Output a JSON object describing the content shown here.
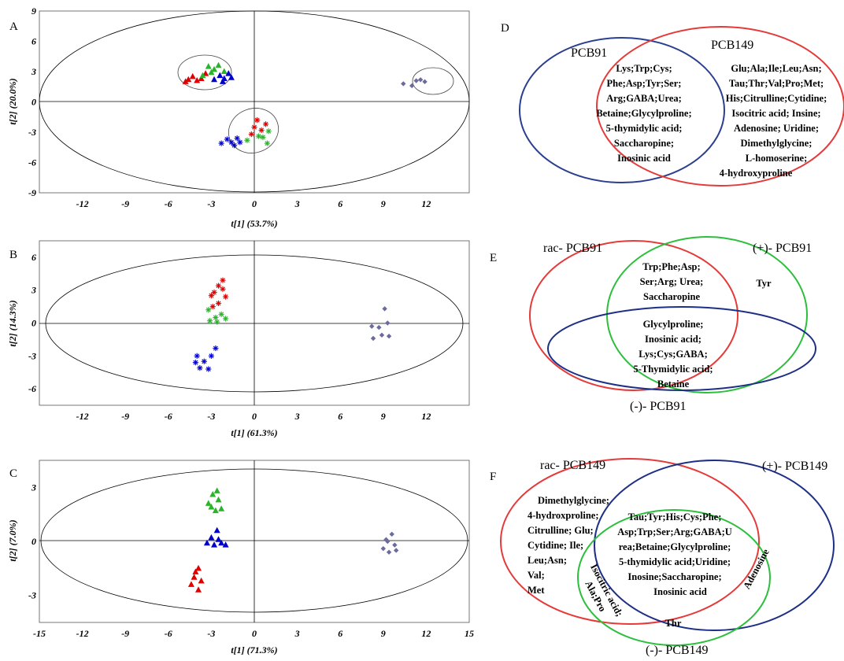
{
  "chart_data": [
    {
      "type": "scatter",
      "panel_label": "A",
      "xlabel": "t[1] (53.7%)",
      "ylabel": "t[2] (20.0%)",
      "xlim": [
        -15,
        15
      ],
      "ylim": [
        -9,
        9
      ],
      "xticks": [
        -12,
        -9,
        -6,
        -3,
        0,
        3,
        6,
        9,
        12
      ],
      "yticks": [
        -9,
        -6,
        -3,
        0,
        3,
        6,
        9
      ],
      "series": [
        {
          "marker": "triangle",
          "color": "#e00000",
          "points": [
            [
              -4.6,
              2.2
            ],
            [
              -4.3,
              2.5
            ],
            [
              -4.0,
              2.1
            ],
            [
              -3.7,
              2.3
            ],
            [
              -3.4,
              2.8
            ],
            [
              -4.8,
              2.0
            ]
          ]
        },
        {
          "marker": "triangle",
          "color": "#2bb32b",
          "points": [
            [
              -3.2,
              3.5
            ],
            [
              -2.8,
              3.2
            ],
            [
              -2.5,
              3.6
            ],
            [
              -3.6,
              2.6
            ],
            [
              -2.1,
              3.0
            ],
            [
              -3.0,
              2.9
            ]
          ]
        },
        {
          "marker": "triangle",
          "color": "#0000cc",
          "points": [
            [
              -2.8,
              2.2
            ],
            [
              -2.4,
              2.6
            ],
            [
              -2.1,
              2.3
            ],
            [
              -1.8,
              2.8
            ],
            [
              -2.2,
              2.0
            ],
            [
              -1.6,
              2.4
            ]
          ]
        },
        {
          "marker": "star",
          "color": "#e00000",
          "points": [
            [
              0.2,
              -1.8
            ],
            [
              0.0,
              -2.5
            ],
            [
              -0.2,
              -3.2
            ],
            [
              0.5,
              -2.8
            ],
            [
              0.8,
              -2.2
            ]
          ]
        },
        {
          "marker": "star",
          "color": "#2bb32b",
          "points": [
            [
              0.6,
              -3.5
            ],
            [
              1.0,
              -2.9
            ],
            [
              -0.5,
              -3.8
            ],
            [
              0.9,
              -4.1
            ],
            [
              0.3,
              -3.4
            ]
          ]
        },
        {
          "marker": "star",
          "color": "#0000cc",
          "points": [
            [
              -1.6,
              -4.0
            ],
            [
              -1.2,
              -3.6
            ],
            [
              -1.9,
              -3.7
            ],
            [
              -1.0,
              -4.0
            ],
            [
              -2.3,
              -4.1
            ],
            [
              -1.4,
              -4.3
            ]
          ]
        },
        {
          "marker": "diamond",
          "color": "#6b6b9e",
          "points": [
            [
              10.4,
              1.8
            ],
            [
              11.0,
              1.6
            ],
            [
              11.6,
              2.2
            ],
            [
              11.9,
              2.0
            ],
            [
              11.3,
              2.1
            ]
          ]
        }
      ]
    },
    {
      "type": "scatter",
      "panel_label": "B",
      "xlabel": "t[1] (61.3%)",
      "ylabel": "t[2] (14.3%)",
      "xlim": [
        -15,
        15
      ],
      "ylim": [
        -7.5,
        7.5
      ],
      "xticks": [
        -12,
        -9,
        -6,
        -3,
        0,
        3,
        6,
        9,
        12
      ],
      "yticks": [
        -6,
        -3,
        0,
        3,
        6
      ],
      "series": [
        {
          "marker": "star",
          "color": "#e00000",
          "points": [
            [
              -2.2,
              3.9
            ],
            [
              -2.5,
              3.4
            ],
            [
              -2.8,
              2.8
            ],
            [
              -2.2,
              3.1
            ],
            [
              -2.0,
              2.4
            ],
            [
              -3.0,
              2.5
            ],
            [
              -2.5,
              1.8
            ],
            [
              -2.9,
              1.5
            ]
          ]
        },
        {
          "marker": "star",
          "color": "#2bb32b",
          "points": [
            [
              -3.2,
              1.2
            ],
            [
              -2.7,
              0.5
            ],
            [
              -2.3,
              0.8
            ],
            [
              -3.1,
              0.2
            ],
            [
              -2.0,
              0.4
            ],
            [
              -2.6,
              0.1
            ]
          ]
        },
        {
          "marker": "star",
          "color": "#0000cc",
          "points": [
            [
              -2.7,
              -2.3
            ],
            [
              -3.0,
              -3.0
            ],
            [
              -3.5,
              -3.5
            ],
            [
              -3.8,
              -4.1
            ],
            [
              -4.1,
              -3.6
            ],
            [
              -3.2,
              -4.2
            ],
            [
              -4.0,
              -3.0
            ]
          ]
        },
        {
          "marker": "diamond",
          "color": "#6b6b9e",
          "points": [
            [
              9.1,
              1.3
            ],
            [
              9.3,
              0.0
            ],
            [
              8.7,
              -0.4
            ],
            [
              8.2,
              -0.3
            ],
            [
              8.9,
              -1.1
            ],
            [
              9.4,
              -1.2
            ],
            [
              8.3,
              -1.4
            ]
          ]
        }
      ]
    },
    {
      "type": "scatter",
      "panel_label": "C",
      "xlabel": "t[1] (71.3%)",
      "ylabel": "t[2] (7.0%)",
      "xlim": [
        -15,
        15
      ],
      "ylim": [
        -4.5,
        4.5
      ],
      "xticks": [
        -15,
        -12,
        -9,
        -6,
        -3,
        0,
        3,
        6,
        9,
        12,
        15
      ],
      "yticks": [
        -3,
        0,
        3
      ],
      "series": [
        {
          "marker": "triangle",
          "color": "#2bb32b",
          "points": [
            [
              -2.6,
              2.8
            ],
            [
              -2.9,
              2.6
            ],
            [
              -2.5,
              2.3
            ],
            [
              -3.0,
              1.9
            ],
            [
              -2.7,
              1.7
            ],
            [
              -2.3,
              1.8
            ],
            [
              -3.2,
              2.1
            ]
          ]
        },
        {
          "marker": "triangle",
          "color": "#0000cc",
          "points": [
            [
              -2.6,
              0.6
            ],
            [
              -3.0,
              0.2
            ],
            [
              -2.3,
              -0.1
            ],
            [
              -2.8,
              -0.2
            ],
            [
              -3.3,
              -0.1
            ],
            [
              -2.0,
              -0.2
            ],
            [
              -2.5,
              0.1
            ]
          ]
        },
        {
          "marker": "triangle",
          "color": "#e00000",
          "points": [
            [
              -3.9,
              -1.5
            ],
            [
              -4.2,
              -2.0
            ],
            [
              -3.7,
              -2.2
            ],
            [
              -4.4,
              -2.4
            ],
            [
              -3.9,
              -2.7
            ],
            [
              -4.1,
              -1.7
            ]
          ]
        },
        {
          "marker": "diamond",
          "color": "#6b6b9e",
          "points": [
            [
              9.6,
              0.4
            ],
            [
              9.2,
              0.1
            ],
            [
              9.8,
              -0.2
            ],
            [
              9.0,
              -0.4
            ],
            [
              9.4,
              -0.6
            ],
            [
              9.9,
              -0.5
            ],
            [
              9.3,
              0.0
            ]
          ]
        }
      ]
    }
  ],
  "venn": {
    "D": {
      "label": "D",
      "sets": [
        "PCB91",
        "PCB149"
      ],
      "shared": [
        "Lys;Trp;Cys;",
        "Phe;Asp;Tyr;Ser;",
        "Arg;GABA;Urea;",
        "Betaine;Glycylproline;",
        "5-thymidylic acid;",
        "Saccharopine;",
        "Inosinic acid"
      ],
      "pcb149_only": [
        "Glu;Ala;Ile;Leu;Asn;",
        "Tau;Thr;Val;Pro;Met;",
        "His;Citrulline;Cytidine;",
        "Isocitric acid; Insine;",
        "Adenosine; Uridine;",
        "Dimethylglycine;",
        "L-homoserine;",
        "4-hydroxyproline"
      ]
    },
    "E": {
      "label": "E",
      "sets": [
        "rac- PCB91",
        "(+)- PCB91",
        "(-)- PCB91"
      ],
      "rac_plus": [
        "Trp;Phe;Asp;",
        "Ser;Arg; Urea;",
        "Saccharopine"
      ],
      "plus_only": [
        "Tyr"
      ],
      "all_three": [
        "Glycylproline;",
        "Inosinic acid;",
        "Lys;Cys;GABA;",
        "5-Thymidylic acid;",
        "Betaine"
      ]
    },
    "F": {
      "label": "F",
      "sets": [
        "rac- PCB149",
        "(+)- PCB149",
        "(-)- PCB149"
      ],
      "rac_only": [
        "Dimethylglycine;",
        "4-hydroxproline;",
        "Citrulline; Glu;",
        "Cytidine; Ile;",
        "Leu;Asn;",
        "Val;",
        "Met"
      ],
      "all_three": [
        "Tau;Tyr;His;Cys;Phe;",
        "Asp;Trp;Ser;Arg;GABA;U",
        "rea;Betaine;Glycylproline;",
        "5-thymidylic acid;Uridine;",
        "Inosine;Saccharopine;",
        "Inosinic acid"
      ],
      "rac_minus": [
        "Isocitric acid;",
        "Ala;Pro"
      ],
      "plus_minus": [
        "Adenosine"
      ],
      "minus_only": [
        "Thr"
      ]
    }
  }
}
